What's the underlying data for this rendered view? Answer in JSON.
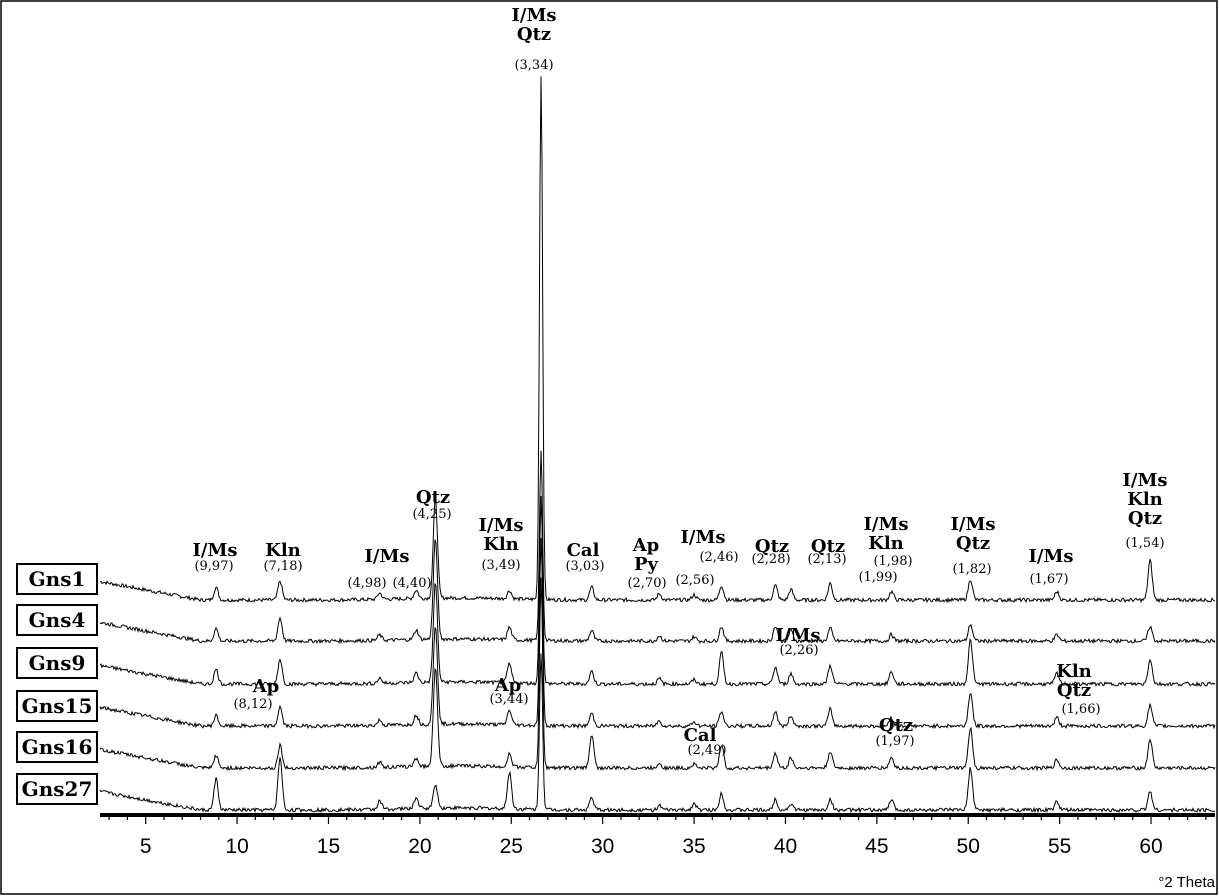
{
  "chart_data": {
    "type": "line",
    "xlabel": "°2 Theta",
    "xlim": [
      2.5,
      63.5
    ],
    "x_ticks": [
      5,
      10,
      15,
      20,
      25,
      30,
      35,
      40,
      45,
      50,
      55,
      60
    ],
    "samples": [
      "Gns1",
      "Gns4",
      "Gns9",
      "Gns15",
      "Gns16",
      "Gns27"
    ],
    "peaks": [
      {
        "x": 8.85,
        "h": [
          12,
          12,
          14,
          10,
          12,
          30
        ]
      },
      {
        "x": 12.35,
        "h": [
          18,
          22,
          24,
          18,
          22,
          50
        ]
      },
      {
        "x": 17.8,
        "h": [
          6,
          5,
          5,
          5,
          5,
          8
        ]
      },
      {
        "x": 19.8,
        "h": [
          8,
          9,
          9,
          9,
          8,
          10
        ]
      },
      {
        "x": 20.85,
        "h": [
          95,
          95,
          95,
          95,
          95,
          23
        ]
      },
      {
        "x": 24.9,
        "h": [
          8,
          12,
          18,
          14,
          12,
          35
        ]
      },
      {
        "x": 26.63,
        "h": [
          500,
          180,
          180,
          180,
          180,
          150
        ]
      },
      {
        "x": 29.4,
        "h": [
          12,
          10,
          12,
          12,
          32,
          12
        ]
      },
      {
        "x": 33.1,
        "h": [
          6,
          5,
          5,
          5,
          5,
          4
        ]
      },
      {
        "x": 35.0,
        "h": [
          5,
          4,
          4,
          4,
          4,
          6
        ]
      },
      {
        "x": 36.5,
        "h": [
          14,
          14,
          30,
          14,
          22,
          16
        ]
      },
      {
        "x": 39.45,
        "h": [
          14,
          14,
          16,
          14,
          14,
          10
        ]
      },
      {
        "x": 40.3,
        "h": [
          10,
          10,
          10,
          10,
          10,
          6
        ]
      },
      {
        "x": 42.45,
        "h": [
          16,
          12,
          18,
          16,
          16,
          10
        ]
      },
      {
        "x": 45.8,
        "h": [
          8,
          6,
          12,
          8,
          10,
          10
        ]
      },
      {
        "x": 50.12,
        "h": [
          20,
          16,
          42,
          32,
          38,
          40
        ]
      },
      {
        "x": 54.85,
        "h": [
          8,
          6,
          10,
          8,
          8,
          8
        ]
      },
      {
        "x": 59.95,
        "h": [
          38,
          14,
          24,
          20,
          28,
          18
        ]
      }
    ],
    "labels": [
      {
        "text": "I/Ms",
        "d": "(9,97)"
      },
      {
        "text": "Kln",
        "d": "(7,18)"
      },
      {
        "text": "I/Ms",
        "d": "(4,98)"
      },
      {
        "text": "",
        "d": "(4,40)"
      },
      {
        "text": "Qtz",
        "d": "(4,25)"
      },
      {
        "text": "I/Ms\nKln",
        "d": "(3,49)"
      },
      {
        "text": "I/Ms\nQtz",
        "d": "(3,34)"
      },
      {
        "text": "Cal",
        "d": "(3,03)"
      },
      {
        "text": "Ap\nPy",
        "d": "(2,70)"
      },
      {
        "text": "",
        "d": "(2,56)"
      },
      {
        "text": "I/Ms",
        "d": "(2,46)"
      },
      {
        "text": "Qtz",
        "d": "(2,28)"
      },
      {
        "text": "I/Ms",
        "d": "(2,26)"
      },
      {
        "text": "Qtz",
        "d": "(2,13)"
      },
      {
        "text": "",
        "d": "(1,99)"
      },
      {
        "text": "I/Ms\nKln",
        "d": "(1,98)"
      },
      {
        "text": "I/Ms\nQtz",
        "d": "(1,82)"
      },
      {
        "text": "I/Ms",
        "d": "(1,67)"
      },
      {
        "text": "I/Ms\nKln\nQtz",
        "d": "(1,54)"
      },
      {
        "text": "Ap",
        "d": "(8,12)"
      },
      {
        "text": "Ap",
        "d": "(3,44)"
      },
      {
        "text": "Cal",
        "d": "(2,49)"
      },
      {
        "text": "Kln\nQtz",
        "d": "(1,66)"
      },
      {
        "text": "Qtz",
        "d": "(1,97)"
      }
    ]
  }
}
